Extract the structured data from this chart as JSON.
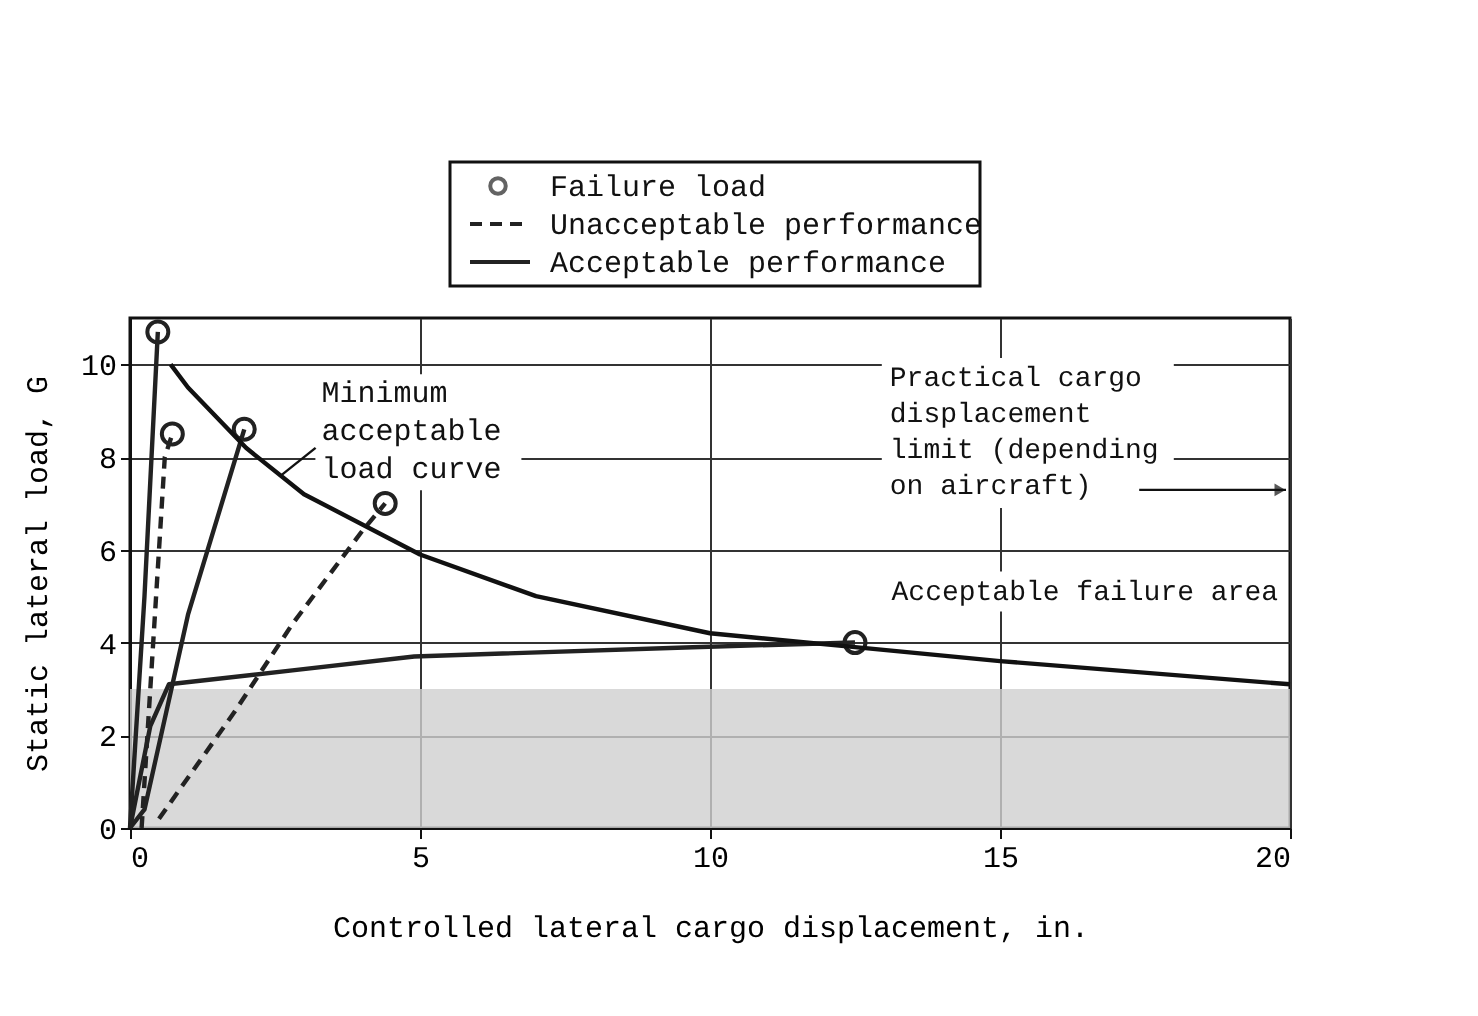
{
  "chart_data": {
    "type": "line",
    "xlabel": "Controlled lateral cargo displacement, in.",
    "ylabel": "Static lateral load, G",
    "xlim": [
      0,
      20
    ],
    "xticks": [
      0,
      5,
      10,
      15,
      20
    ],
    "ylim": [
      0,
      11
    ],
    "yticks": [
      0,
      2,
      4,
      6,
      8,
      10
    ],
    "grid": true,
    "legend": "top",
    "series": [
      {
        "name": "Failure load",
        "type": "scatter",
        "marker": "circle",
        "color": "#222222",
        "x": [
          0.48,
          0.73,
          1.97,
          4.4,
          12.5
        ],
        "values": [
          10.7,
          8.5,
          8.6,
          7.0,
          4.0
        ]
      },
      {
        "name": "Unacceptable performance",
        "type": "line",
        "line_style": "dashed",
        "color": "#222222",
        "x": [
          0.2,
          0.4,
          0.6,
          0.73
        ],
        "values": [
          0.0,
          4.0,
          8.0,
          8.5
        ]
      },
      {
        "type": "line",
        "line_style": "dashed",
        "color": "#222222",
        "x": [
          0.5,
          1.8,
          2.8,
          4.0,
          4.4
        ],
        "values": [
          0.2,
          2.5,
          4.4,
          6.4,
          7.0
        ]
      },
      {
        "name": "Acceptable performance",
        "type": "line",
        "line_style": "solid",
        "color": "#222222",
        "x": [
          0.0,
          0.25,
          0.48
        ],
        "values": [
          0.0,
          5.0,
          10.7
        ]
      },
      {
        "type": "line",
        "line_style": "solid",
        "color": "#222222",
        "x": [
          0.0,
          0.25,
          1.0,
          1.97
        ],
        "values": [
          0.0,
          0.4,
          4.6,
          8.6
        ]
      },
      {
        "type": "line",
        "line_style": "solid",
        "color": "#222222",
        "x": [
          0.0,
          0.35,
          0.67,
          2.8,
          4.9,
          9.7,
          12.5
        ],
        "values": [
          0.0,
          2.2,
          3.1,
          3.4,
          3.7,
          3.9,
          4.0
        ]
      },
      {
        "type": "line",
        "line_style": "solid",
        "color": "#111111",
        "x": [
          0.7,
          1.0,
          2.0,
          3.0,
          5.0,
          7.0,
          10.0,
          12.5,
          15.0,
          20.0
        ],
        "values": [
          10.0,
          9.5,
          8.2,
          7.2,
          5.9,
          5.0,
          4.2,
          3.9,
          3.6,
          3.1
        ]
      }
    ],
    "bands": [
      {
        "axis": "y",
        "from": 0,
        "to": 3,
        "color": "#cfcfcf"
      }
    ],
    "annotations": [
      {
        "text": "Minimum acceptable load curve",
        "x": 2.6,
        "y": 7.6
      },
      "Practical cargo displacement limit (depending on aircraft)",
      "Acceptable failure area"
    ]
  }
}
